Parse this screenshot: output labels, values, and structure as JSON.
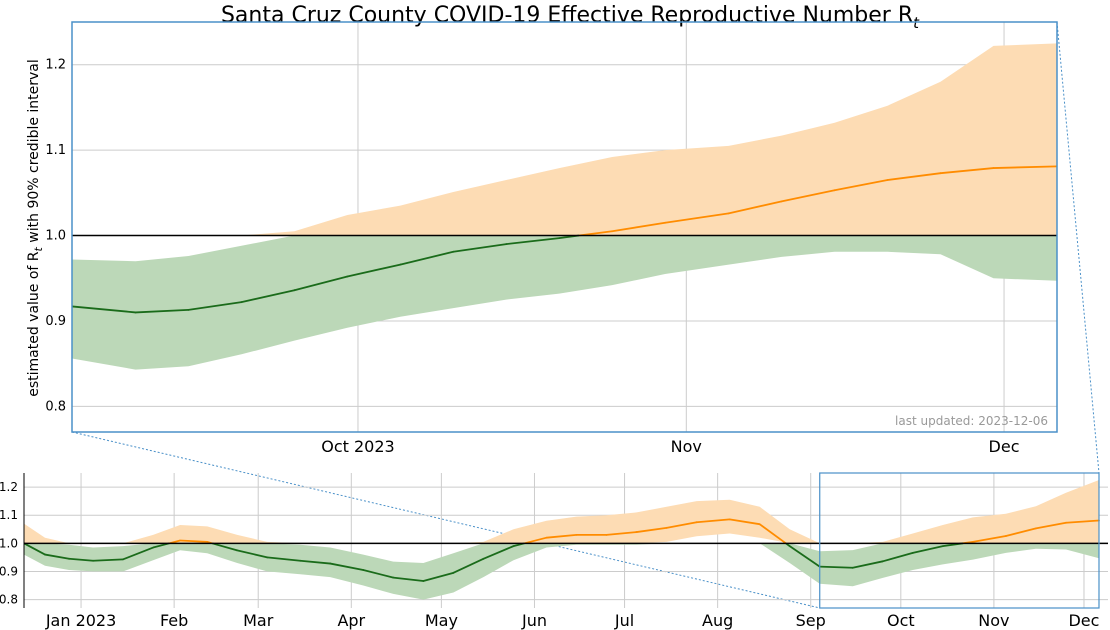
{
  "chart_data": {
    "title": "Santa Cruz County COVID-19 Effective Reproductive Number R",
    "title_subscript": "t",
    "ylabel": {
      "main": "estimated value of R",
      "subscript": "t",
      "rest": " with 90% credible interval"
    },
    "last_updated": "last updated: 2023-12-06",
    "reference_line": 1.0,
    "colors": {
      "above_line": "#ff8c00",
      "above_band": "#fddcb4",
      "below_line": "#1a6b1a",
      "below_band": "#bcd8b8",
      "zoom_box": "#4a90c8",
      "grid": "#cccccc"
    },
    "zoom_panel": {
      "type": "area",
      "xlim": [
        "2023-09-04",
        "2023-12-06"
      ],
      "ylim": [
        0.77,
        1.25
      ],
      "yticks": [
        "0.8",
        "0.9",
        "1.0",
        "1.1",
        "1.2"
      ],
      "ytick_values": [
        0.8,
        0.9,
        1.0,
        1.1,
        1.2
      ],
      "xticks": [
        {
          "date": "2023-10-01",
          "label": "Oct 2023"
        },
        {
          "date": "2023-11-01",
          "label": "Nov"
        },
        {
          "date": "2023-12-01",
          "label": "Dec"
        }
      ],
      "series": {
        "x": [
          "2023-09-04",
          "2023-09-10",
          "2023-09-15",
          "2023-09-20",
          "2023-09-25",
          "2023-09-30",
          "2023-10-05",
          "2023-10-10",
          "2023-10-15",
          "2023-10-20",
          "2023-10-25",
          "2023-10-30",
          "2023-11-05",
          "2023-11-10",
          "2023-11-15",
          "2023-11-20",
          "2023-11-25",
          "2023-11-30",
          "2023-12-06"
        ],
        "median": [
          0.917,
          0.91,
          0.913,
          0.922,
          0.936,
          0.952,
          0.966,
          0.981,
          0.99,
          0.997,
          1.005,
          1.015,
          1.026,
          1.04,
          1.053,
          1.065,
          1.073,
          1.079,
          1.081
        ],
        "lower": [
          0.856,
          0.843,
          0.847,
          0.861,
          0.877,
          0.892,
          0.905,
          0.915,
          0.925,
          0.932,
          0.942,
          0.955,
          0.966,
          0.975,
          0.981,
          0.981,
          0.978,
          0.95,
          0.947
        ],
        "upper": [
          0.972,
          0.97,
          0.976,
          0.988,
          1.005,
          1.024,
          1.035,
          1.051,
          1.065,
          1.079,
          1.092,
          1.1,
          1.105,
          1.117,
          1.132,
          1.152,
          1.18,
          1.222,
          1.225
        ]
      }
    },
    "overview_panel": {
      "type": "area",
      "xlim": [
        "2022-12-13",
        "2023-12-09"
      ],
      "ylim": [
        0.77,
        1.25
      ],
      "yticks": [
        "0.8",
        "0.9",
        "1.0",
        "1.1",
        "1.2"
      ],
      "ytick_values": [
        0.8,
        0.9,
        1.0,
        1.1,
        1.2
      ],
      "xticks": [
        {
          "date": "2023-01-01",
          "label": "Jan 2023"
        },
        {
          "date": "2023-02-01",
          "label": "Feb"
        },
        {
          "date": "2023-03-01",
          "label": "Mar"
        },
        {
          "date": "2023-04-01",
          "label": "Apr"
        },
        {
          "date": "2023-05-01",
          "label": "May"
        },
        {
          "date": "2023-06-01",
          "label": "Jun"
        },
        {
          "date": "2023-07-01",
          "label": "Jul"
        },
        {
          "date": "2023-08-01",
          "label": "Aug"
        },
        {
          "date": "2023-09-01",
          "label": "Sep"
        },
        {
          "date": "2023-10-01",
          "label": "Oct"
        },
        {
          "date": "2023-11-01",
          "label": "Nov"
        },
        {
          "date": "2023-12-01",
          "label": "Dec"
        }
      ],
      "series": {
        "x": [
          "2022-12-13",
          "2022-12-20",
          "2022-12-28",
          "2023-01-05",
          "2023-01-15",
          "2023-01-25",
          "2023-02-03",
          "2023-02-12",
          "2023-02-22",
          "2023-03-04",
          "2023-03-15",
          "2023-03-25",
          "2023-04-05",
          "2023-04-15",
          "2023-04-25",
          "2023-05-05",
          "2023-05-15",
          "2023-05-25",
          "2023-06-05",
          "2023-06-15",
          "2023-06-25",
          "2023-07-05",
          "2023-07-15",
          "2023-07-25",
          "2023-08-05",
          "2023-08-15",
          "2023-08-25",
          "2023-09-04",
          "2023-09-15",
          "2023-09-25",
          "2023-10-05",
          "2023-10-15",
          "2023-10-25",
          "2023-11-05",
          "2023-11-15",
          "2023-11-25",
          "2023-12-06"
        ],
        "median": [
          1.0,
          0.96,
          0.945,
          0.938,
          0.943,
          0.985,
          1.01,
          1.005,
          0.975,
          0.95,
          0.938,
          0.928,
          0.905,
          0.878,
          0.866,
          0.895,
          0.945,
          0.99,
          1.02,
          1.03,
          1.03,
          1.04,
          1.055,
          1.075,
          1.085,
          1.068,
          0.99,
          0.917,
          0.913,
          0.936,
          0.966,
          0.99,
          1.005,
          1.026,
          1.053,
          1.073,
          1.081
        ],
        "lower": [
          0.96,
          0.92,
          0.905,
          0.9,
          0.9,
          0.94,
          0.975,
          0.965,
          0.93,
          0.9,
          0.89,
          0.88,
          0.85,
          0.82,
          0.8,
          0.825,
          0.88,
          0.94,
          0.985,
          0.995,
          0.995,
          0.995,
          1.005,
          1.025,
          1.035,
          1.02,
          0.93,
          0.856,
          0.847,
          0.877,
          0.905,
          0.925,
          0.942,
          0.966,
          0.981,
          0.978,
          0.947
        ],
        "upper": [
          1.07,
          1.02,
          0.995,
          0.985,
          0.99,
          1.03,
          1.065,
          1.06,
          1.03,
          1.005,
          0.995,
          0.985,
          0.96,
          0.935,
          0.93,
          0.965,
          1.005,
          1.05,
          1.08,
          1.095,
          1.1,
          1.11,
          1.13,
          1.15,
          1.155,
          1.13,
          1.05,
          0.972,
          0.976,
          1.005,
          1.035,
          1.065,
          1.092,
          1.105,
          1.132,
          1.18,
          1.225
        ]
      }
    }
  }
}
